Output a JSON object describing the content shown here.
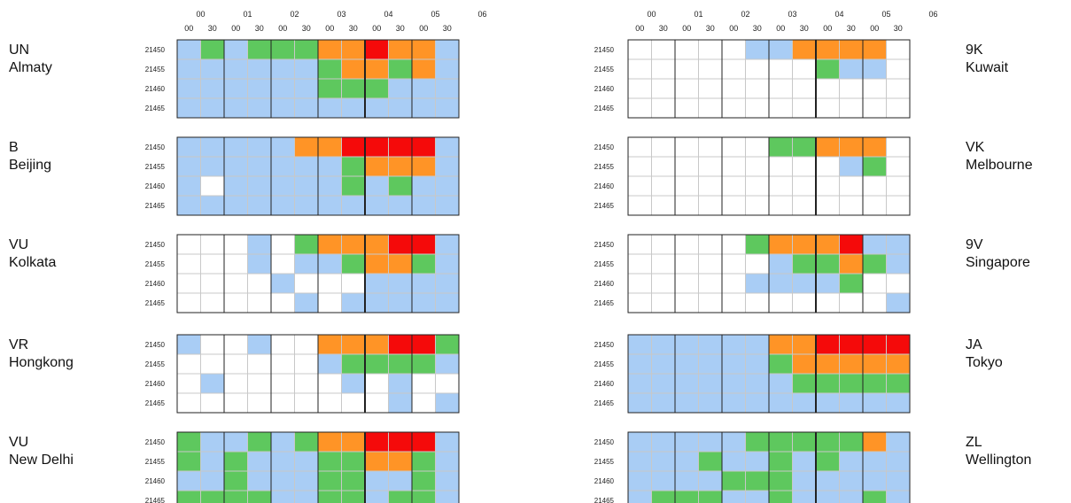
{
  "chart_data": {
    "type": "heatmap",
    "hours": [
      "00",
      "01",
      "02",
      "03",
      "04",
      "05",
      "06"
    ],
    "minutes": [
      "00",
      "30"
    ],
    "frequencies": [
      "21450",
      "21455",
      "21460",
      "21465"
    ],
    "colors": {
      "B": "#a9cdf5",
      "W": "#ffffff",
      "G": "#5ec85e",
      "O": "#ff9426",
      "R": "#f50a0a"
    },
    "stations": [
      {
        "id": "un",
        "prefix": "UN",
        "city": "Almaty",
        "column": "left",
        "grid": [
          "BGBGGGOOROOB",
          "BBBBBBGOOGOB",
          "BBBBBBGGGBBB",
          "BBBBBBBBBBBB"
        ]
      },
      {
        "id": "b",
        "prefix": "B",
        "city": "Beijing",
        "column": "left",
        "grid": [
          "BBBBBOORRRRB",
          "BBBBBBBGOOOB",
          "BWBBBBBGBGBB",
          "BBBBBBBBBBBB"
        ]
      },
      {
        "id": "vu-kolkata",
        "prefix": "VU",
        "city": "Kolkata",
        "column": "left",
        "grid": [
          "WWWBWGOOORRB",
          "WWWBWBBGOOGB",
          "WWWWBWWWBBBB",
          "WWWWWBWBBBBB"
        ]
      },
      {
        "id": "vr",
        "prefix": "VR",
        "city": "Hongkong",
        "column": "left",
        "grid": [
          "BWWBWWOOORRG",
          "WWWWWWBGGGGB",
          "WBWWWWWBWBWW",
          "WWWWWWWWWBWB"
        ]
      },
      {
        "id": "vu-delhi",
        "prefix": "VU",
        "city": "New Delhi",
        "column": "left",
        "grid": [
          "GBBGBGOORRRB",
          "GBGBBBGGOOGB",
          "BBGBBBGGBBGB",
          "GGGGBBGGBGGB"
        ]
      },
      {
        "id": "9k",
        "prefix": "9K",
        "city": "Kuwait",
        "column": "right",
        "grid": [
          "WWWWWBBOOOOW",
          "WWWWWWWWGBBW",
          "WWWWWWWWWWWW",
          "WWWWWWWWWWWW"
        ]
      },
      {
        "id": "vk",
        "prefix": "VK",
        "city": "Melbourne",
        "column": "right",
        "grid": [
          "WWWWWWGGOOOW",
          "WWWWWWWWWBGW",
          "WWWWWWWWWWWW",
          "WWWWWWWWWWWW"
        ]
      },
      {
        "id": "9v",
        "prefix": "9V",
        "city": "Singapore",
        "column": "right",
        "grid": [
          "WWWWWGOOORBB",
          "WWWWWWBGGOGB",
          "WWWWWBBBBGWW",
          "WWWWWWWWWWWB"
        ]
      },
      {
        "id": "ja",
        "prefix": "JA",
        "city": "Tokyo",
        "column": "right",
        "grid": [
          "BBBBBBOORRRR",
          "BBBBBBGOOOOO",
          "BBBBBBBGGGGG",
          "BBBBBBBBBBBB"
        ]
      },
      {
        "id": "zl",
        "prefix": "ZL",
        "city": "Wellington",
        "column": "right",
        "grid": [
          "BBBBBGGGGGOB",
          "BBBGBBGBGBBB",
          "BBBBGGGBBBBB",
          "BGGGBBGBBBGB"
        ]
      }
    ]
  }
}
